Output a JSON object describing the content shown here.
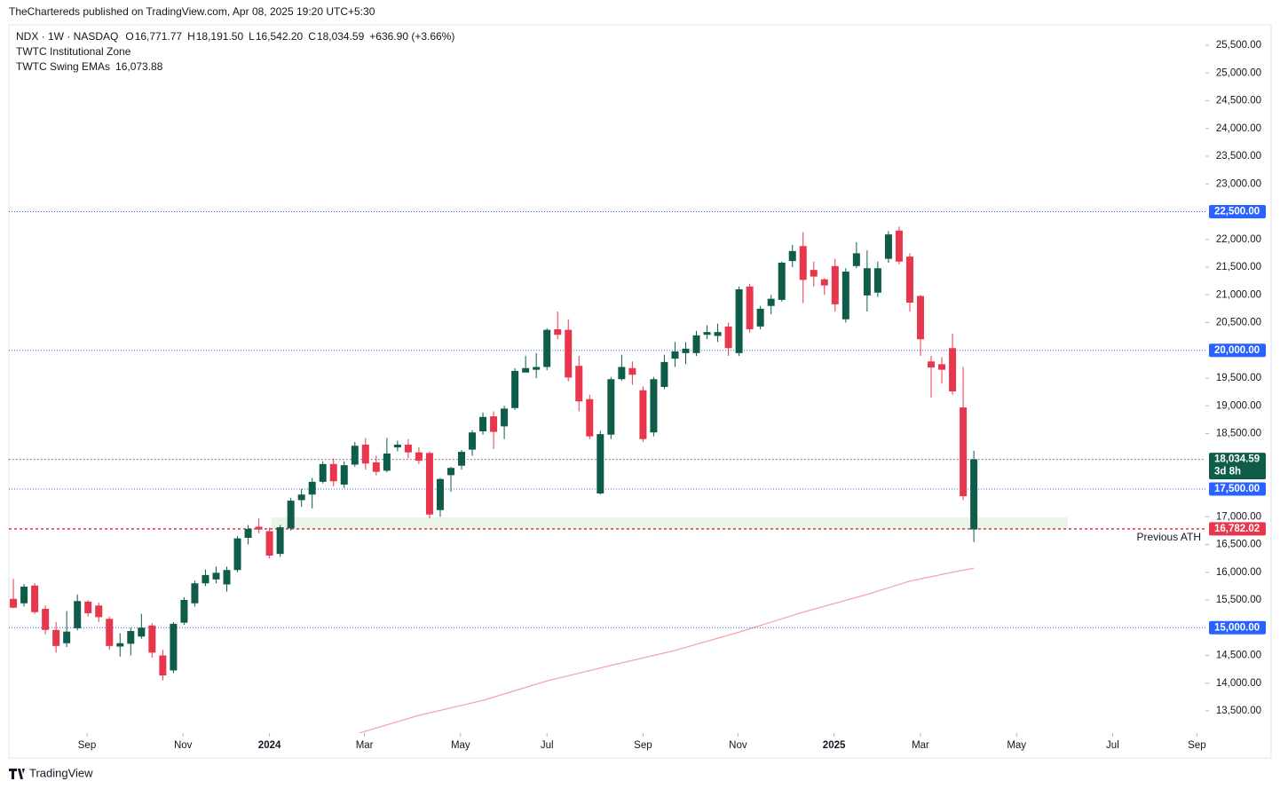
{
  "published": "TheChartereds published on TradingView.com, Apr 08, 2025 19:20 UTC+5:30",
  "footer": "TradingView",
  "chart_data": {
    "type": "candlestick",
    "symbol": "NDX · 1W · NASDAQ",
    "header_values": [
      {
        "label": "O",
        "value": "16,771.77"
      },
      {
        "label": "H",
        "value": "18,191.50"
      },
      {
        "label": "L",
        "value": "16,542.20"
      },
      {
        "label": "C",
        "value": "18,034.59"
      }
    ],
    "change": "+636.90 (+3.66%)",
    "up_color": "#0f5c4a",
    "down_color": "#e8374c",
    "candles": {
      "open": [
        15520,
        15440,
        15760,
        15340,
        14960,
        14720,
        14990,
        15470,
        15400,
        15160,
        14660,
        14710,
        14840,
        15040,
        14500,
        14230,
        15090,
        15440,
        15800,
        15870,
        15780,
        16040,
        16620,
        16820,
        16740,
        16330,
        16790,
        17300,
        17400,
        17630,
        17950,
        17580,
        17940,
        18300,
        17980,
        17830,
        18250,
        18300,
        18160,
        18150,
        17120,
        17750,
        17920,
        18210,
        18540,
        18810,
        18630,
        18960,
        19600,
        19650,
        19700,
        20380,
        20370,
        19720,
        19120,
        17420,
        18480,
        19480,
        19680,
        19280,
        18520,
        19340,
        19850,
        19950,
        19950,
        20280,
        20260,
        20430,
        19950,
        21150,
        20430,
        20800,
        20910,
        21610,
        21880,
        21450,
        21280,
        21520,
        20560,
        21520,
        20990,
        21040,
        21650,
        22160,
        21690,
        20980,
        19800,
        19750,
        20040,
        18970,
        16771.77
      ],
      "high": [
        15880,
        15790,
        15800,
        15400,
        15100,
        15300,
        15600,
        15500,
        15450,
        15200,
        14900,
        15000,
        15250,
        15080,
        14600,
        15100,
        15550,
        15850,
        16050,
        16100,
        16100,
        16650,
        16850,
        16970,
        16800,
        16850,
        17340,
        17500,
        17700,
        18000,
        18050,
        18000,
        18350,
        18420,
        18100,
        18420,
        18370,
        18400,
        18250,
        18180,
        17700,
        17900,
        18200,
        18560,
        18880,
        18900,
        19000,
        19680,
        19900,
        19950,
        20400,
        20700,
        20560,
        19900,
        19200,
        18550,
        19520,
        19920,
        19800,
        19350,
        19520,
        19920,
        20150,
        20150,
        20350,
        20450,
        20480,
        20500,
        21150,
        21200,
        20800,
        21000,
        21600,
        21900,
        22130,
        21600,
        21300,
        21650,
        21480,
        21950,
        21800,
        21600,
        22150,
        22230,
        21750,
        21000,
        19900,
        19880,
        20300,
        19700,
        18191.5
      ],
      "low": [
        15350,
        15380,
        15250,
        14880,
        14550,
        14650,
        14950,
        15200,
        15100,
        14600,
        14480,
        14500,
        14800,
        14460,
        14050,
        14180,
        15050,
        15380,
        15750,
        15800,
        15650,
        16000,
        16500,
        16700,
        16250,
        16280,
        16750,
        17180,
        17150,
        17600,
        17550,
        17520,
        17900,
        17850,
        17750,
        17800,
        18180,
        18050,
        17950,
        16970,
        17000,
        17450,
        17850,
        18100,
        18480,
        18220,
        18400,
        18930,
        19600,
        19500,
        19640,
        20200,
        19440,
        18900,
        18400,
        17400,
        18400,
        19450,
        19380,
        18350,
        18450,
        19300,
        19700,
        19750,
        19900,
        20200,
        20150,
        19900,
        19900,
        20320,
        20380,
        20650,
        20880,
        21500,
        20850,
        21150,
        21000,
        20700,
        20500,
        21480,
        20700,
        20960,
        21580,
        21550,
        20700,
        19900,
        19150,
        19400,
        19200,
        17300,
        16542.2
      ],
      "close": [
        15360,
        15740,
        15280,
        14960,
        14670,
        14930,
        15480,
        15260,
        15190,
        14670,
        14720,
        14940,
        15000,
        14550,
        14140,
        15070,
        15500,
        15800,
        15950,
        15990,
        16040,
        16610,
        16780,
        16770,
        16300,
        16810,
        17290,
        17400,
        17630,
        17950,
        17640,
        17930,
        18280,
        17960,
        17810,
        18140,
        18300,
        18160,
        18010,
        17040,
        17680,
        17880,
        18170,
        18520,
        18800,
        18530,
        18950,
        19630,
        19680,
        19700,
        20370,
        20280,
        19510,
        19080,
        18450,
        18490,
        19480,
        19700,
        19560,
        18400,
        19480,
        19790,
        19980,
        20030,
        20270,
        20330,
        20330,
        20040,
        21100,
        20380,
        20750,
        20930,
        21580,
        21790,
        21270,
        21330,
        21170,
        20830,
        21420,
        21750,
        21480,
        21480,
        22090,
        21600,
        20860,
        20200,
        19690,
        19650,
        19260,
        17370,
        18034.59
      ]
    },
    "indicators": [
      {
        "name": "TWTC Institutional Zone",
        "type": "zone",
        "color": "#e9f5e9",
        "x": [
          24.2,
          98.8
        ],
        "values": [
          16764,
          16988
        ]
      },
      {
        "name": "TWTC Swing EMAs",
        "type": "line",
        "color": "#f4a3a8",
        "value_label": "16,073.88",
        "x": [
          32.4,
          38,
          44,
          50,
          56,
          62,
          68,
          74,
          80,
          84,
          88,
          90
        ],
        "values": [
          13100,
          13420,
          13690,
          14040,
          14320,
          14590,
          14920,
          15280,
          15600,
          15840,
          16000,
          16073.88
        ]
      }
    ],
    "levels": [
      {
        "value": 22500,
        "label": "22,500.00",
        "color": "#2962ff"
      },
      {
        "value": 20000,
        "label": "20,000.00",
        "color": "#2962ff"
      },
      {
        "value": 17500,
        "label": "17,500.00",
        "color": "#2962ff"
      },
      {
        "value": 15000,
        "label": "15,000.00",
        "color": "#2962ff"
      },
      {
        "value": 16782.02,
        "label": "16,782.02",
        "color": "#e8374c",
        "annotation": "Previous ATH"
      },
      {
        "value": 18034.59,
        "label": "18,034.59",
        "sublabel": "3d 8h",
        "color": "#0f5c4a"
      }
    ],
    "xlim": [
      -0.42,
      111.7
    ],
    "ylim": [
      13100,
      25868
    ],
    "xticks": [
      {
        "value": 6.9,
        "label": "Sep"
      },
      {
        "value": 15.9,
        "label": "Nov"
      },
      {
        "value": 24.0,
        "label": "2024"
      },
      {
        "value": 32.9,
        "label": "Mar"
      },
      {
        "value": 41.9,
        "label": "May"
      },
      {
        "value": 50.0,
        "label": "Jul"
      },
      {
        "value": 59.0,
        "label": "Sep"
      },
      {
        "value": 67.9,
        "label": "Nov"
      },
      {
        "value": 76.9,
        "label": "2025"
      },
      {
        "value": 85.0,
        "label": "Mar"
      },
      {
        "value": 94.0,
        "label": "May"
      },
      {
        "value": 103.0,
        "label": "Jul"
      },
      {
        "value": 110.9,
        "label": "Sep"
      }
    ],
    "yticks": [
      {
        "value": 13500,
        "label": "13,500.00"
      },
      {
        "value": 14000,
        "label": "14,000.00"
      },
      {
        "value": 14500,
        "label": "14,500.00"
      },
      {
        "value": 15500,
        "label": "15,500.00"
      },
      {
        "value": 16000,
        "label": "16,000.00"
      },
      {
        "value": 16500,
        "label": "16,500.00"
      },
      {
        "value": 17000,
        "label": "17,000.00"
      },
      {
        "value": 18500,
        "label": "18,500.00"
      },
      {
        "value": 19000,
        "label": "19,000.00"
      },
      {
        "value": 19500,
        "label": "19,500.00"
      },
      {
        "value": 20500,
        "label": "20,500.00"
      },
      {
        "value": 21000,
        "label": "21,000.00"
      },
      {
        "value": 21500,
        "label": "21,500.00"
      },
      {
        "value": 22000,
        "label": "22,000.00"
      },
      {
        "value": 23000,
        "label": "23,000.00"
      },
      {
        "value": 23500,
        "label": "23,500.00"
      },
      {
        "value": 24000,
        "label": "24,000.00"
      },
      {
        "value": 24500,
        "label": "24,500.00"
      },
      {
        "value": 25000,
        "label": "25,000.00"
      },
      {
        "value": 25500,
        "label": "25,500.00"
      }
    ]
  }
}
